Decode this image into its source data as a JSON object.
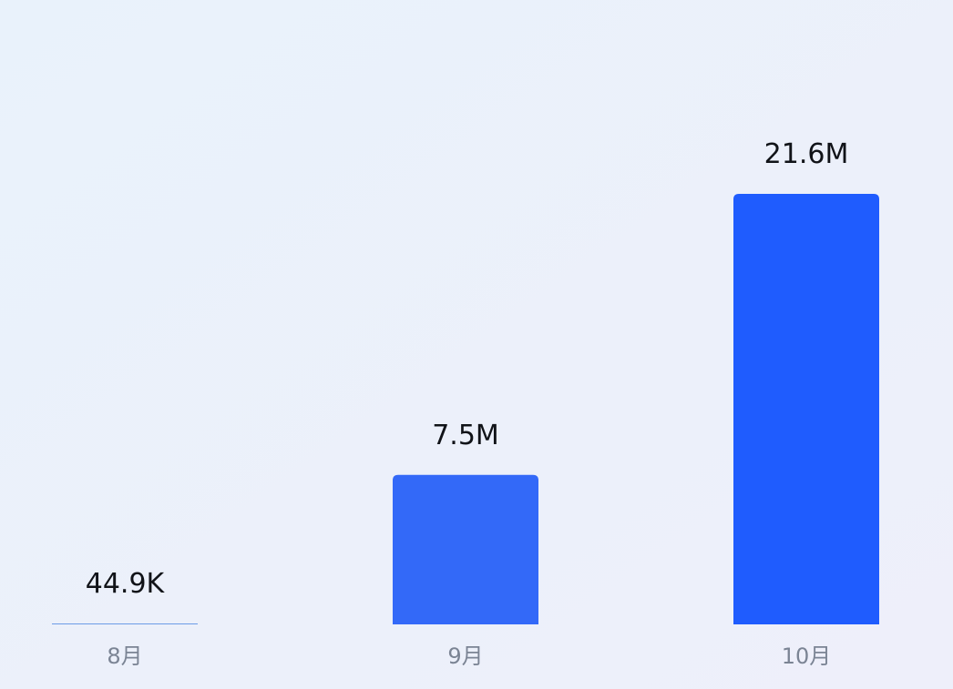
{
  "chart_data": {
    "type": "bar",
    "categories": [
      "8月",
      "9月",
      "10月"
    ],
    "values": [
      44900,
      7500000,
      21600000
    ],
    "value_labels": [
      "44.9K",
      "7.5M",
      "21.6M"
    ],
    "colors": [
      "#6c9ce6",
      "#3369f8",
      "#1f5cfe"
    ]
  }
}
